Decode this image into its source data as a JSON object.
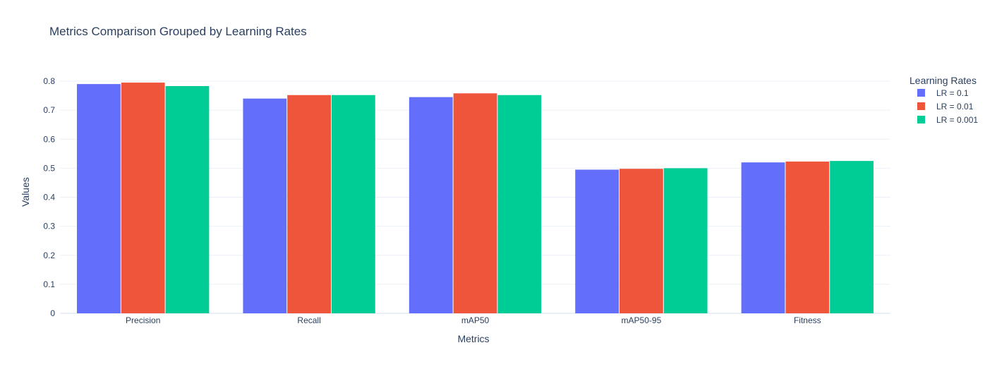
{
  "chart_data": {
    "type": "bar",
    "title": "Metrics Comparison Grouped by Learning Rates",
    "xlabel": "Metrics",
    "ylabel": "Values",
    "categories": [
      "Precision",
      "Recall",
      "mAP50",
      "mAP50-95",
      "Fitness"
    ],
    "series": [
      {
        "name": "LR = 0.1",
        "color": "#636efa",
        "values": [
          0.79,
          0.74,
          0.745,
          0.495,
          0.52
        ]
      },
      {
        "name": "LR = 0.01",
        "color": "#ef553b",
        "values": [
          0.795,
          0.752,
          0.758,
          0.498,
          0.523
        ]
      },
      {
        "name": "LR = 0.001",
        "color": "#00cc96",
        "values": [
          0.783,
          0.752,
          0.752,
          0.5,
          0.525
        ]
      }
    ],
    "ylim": [
      0,
      0.8
    ],
    "yticks": [
      "0",
      "0.1",
      "0.2",
      "0.3",
      "0.4",
      "0.5",
      "0.6",
      "0.7",
      "0.8"
    ],
    "grid": true,
    "legend": {
      "title": "Learning Rates",
      "placement": "top-right"
    }
  }
}
